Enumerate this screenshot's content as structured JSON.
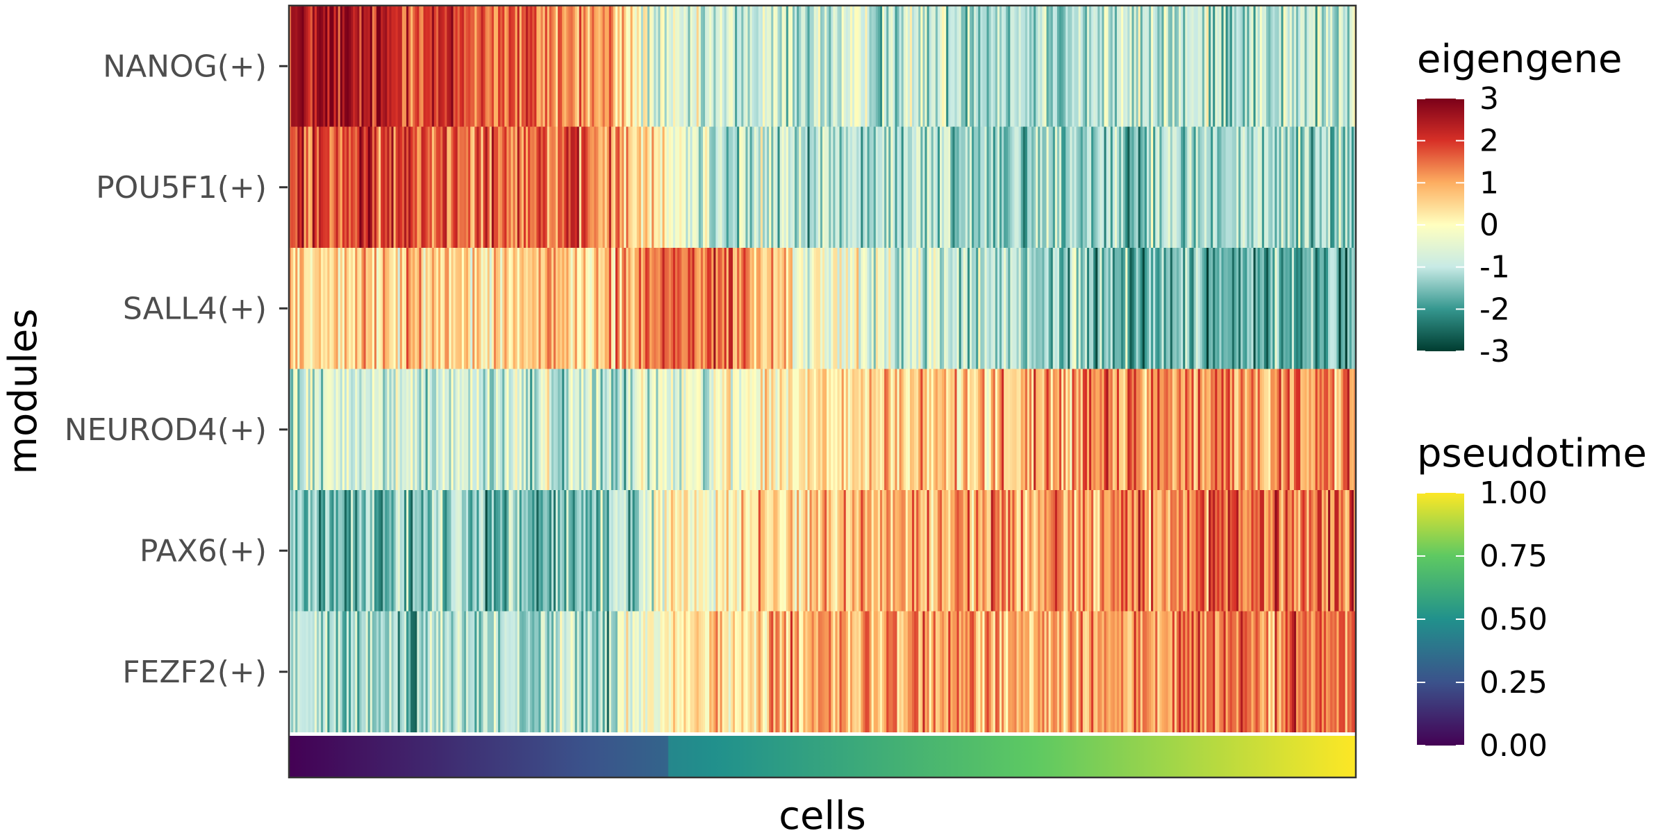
{
  "chart_data": {
    "type": "heatmap",
    "xlabel": "cells",
    "ylabel": "modules",
    "grid": false,
    "rows": [
      "NANOG(+)",
      "POU5F1(+)",
      "SALL4(+)",
      "NEUROD4(+)",
      "PAX6(+)",
      "FEZF2(+)"
    ],
    "x_segments": [
      0,
      0.1,
      0.2,
      0.3,
      0.35,
      0.4,
      0.5,
      0.6,
      0.7,
      0.8,
      0.9,
      1.0
    ],
    "row_profiles": [
      [
        2.5,
        2.2,
        1.6,
        1.0,
        -0.9,
        -0.9,
        -0.9,
        -0.9,
        -1.0,
        -1.0,
        -1.0,
        -1.0
      ],
      [
        1.8,
        1.8,
        1.8,
        1.2,
        0.0,
        -0.9,
        -1.1,
        -1.2,
        -1.2,
        -1.2,
        -1.2,
        -1.3
      ],
      [
        0.6,
        0.6,
        0.6,
        0.6,
        1.6,
        1.6,
        -0.3,
        -0.8,
        -1.4,
        -1.6,
        -1.7,
        -1.9
      ],
      [
        -0.8,
        -0.8,
        -0.8,
        -0.8,
        -0.6,
        -0.2,
        0.3,
        0.6,
        1.0,
        1.2,
        1.2,
        1.3
      ],
      [
        -1.5,
        -1.5,
        -1.5,
        -1.5,
        -0.2,
        0.3,
        0.8,
        1.0,
        1.2,
        1.3,
        1.4,
        1.5
      ],
      [
        -1.2,
        -1.2,
        -1.2,
        -1.2,
        0.2,
        0.5,
        0.8,
        1.0,
        1.1,
        1.2,
        1.3,
        1.4
      ]
    ],
    "noise_amplitude": 0.8,
    "n_cells": 500,
    "pseudotime": {
      "range": [
        0,
        1
      ],
      "breakpoint_x": 0.355,
      "value_at_breakpoint": 0.46
    },
    "legends": [
      {
        "title": "eigengene",
        "colormap": "Spectral",
        "range": [
          -3,
          3
        ],
        "ticks": [
          3,
          2,
          1,
          0,
          -1,
          -2,
          -3
        ],
        "tick_labels": [
          "3",
          "2",
          "1",
          "0",
          "-1",
          "-2",
          "-3"
        ],
        "stops": [
          "#003c30",
          "#35978f",
          "#c7eae5",
          "#ffffbf",
          "#fdae61",
          "#d73027",
          "#7b0019"
        ]
      },
      {
        "title": "pseudotime",
        "colormap": "viridis",
        "range": [
          0,
          1
        ],
        "ticks": [
          1.0,
          0.75,
          0.5,
          0.25,
          0.0
        ],
        "tick_labels": [
          "1.00",
          "0.75",
          "0.50",
          "0.25",
          "0.00"
        ],
        "stops": [
          "#440154",
          "#3b528b",
          "#21918c",
          "#5ec962",
          "#fde725"
        ]
      }
    ]
  }
}
